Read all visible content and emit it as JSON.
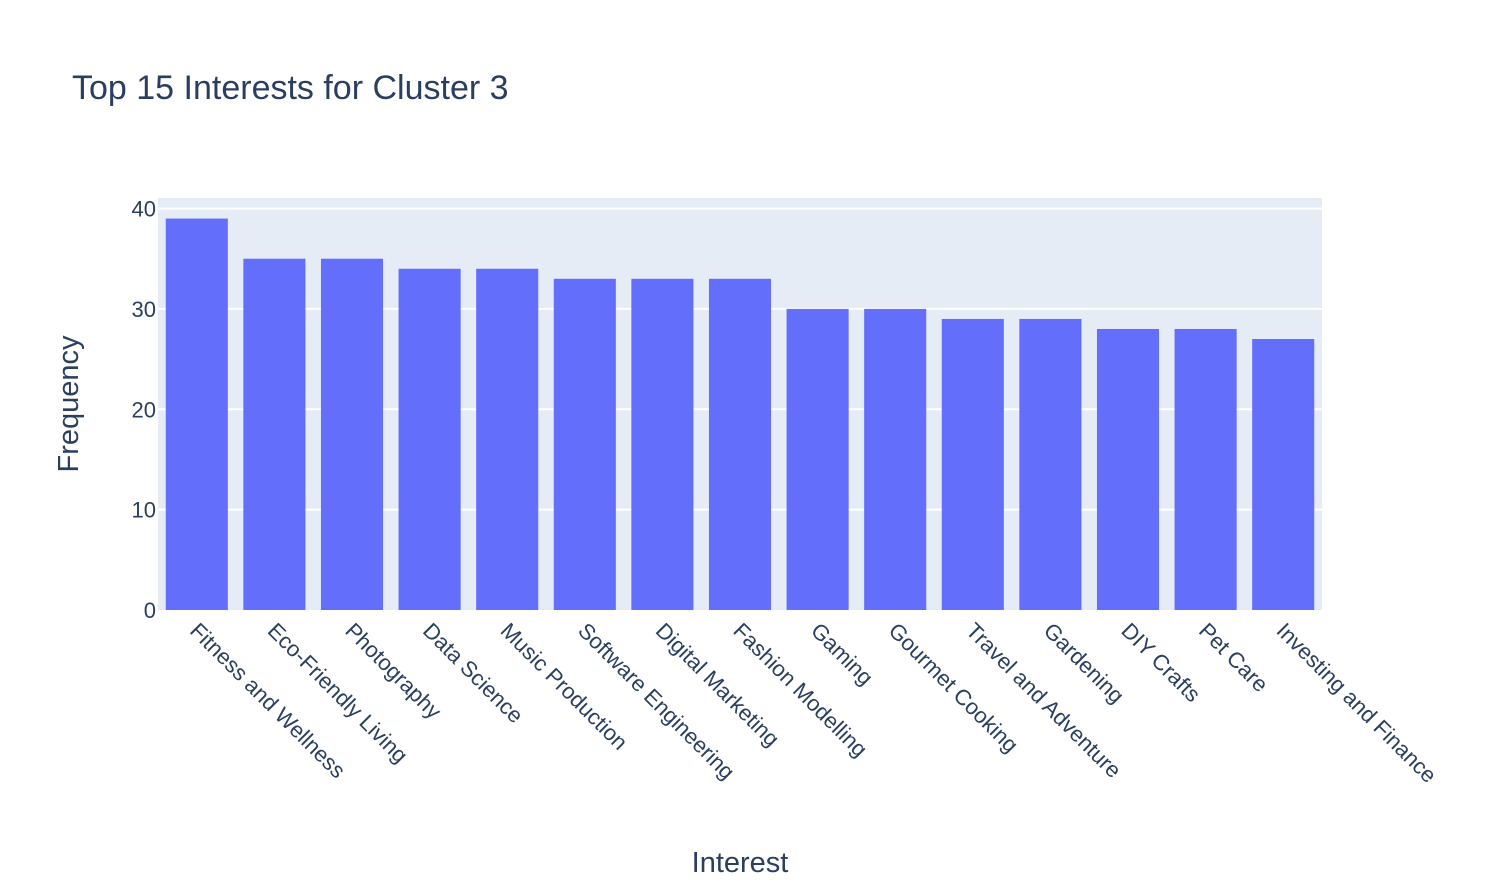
{
  "chart_data": {
    "type": "bar",
    "title": "Top 15 Interests for Cluster 3",
    "xlabel": "Interest",
    "ylabel": "Frequency",
    "categories": [
      "Fitness and Wellness",
      "Eco-Friendly Living",
      "Photography",
      "Data Science",
      "Music Production",
      "Software Engineering",
      "Digital Marketing",
      "Fashion Modelling",
      "Gaming",
      "Gourmet Cooking",
      "Travel and Adventure",
      "Gardening",
      "DIY Crafts",
      "Pet Care",
      "Investing and Finance"
    ],
    "values": [
      39,
      35,
      35,
      34,
      34,
      33,
      33,
      33,
      30,
      30,
      29,
      29,
      28,
      28,
      27
    ],
    "ylim": [
      0,
      41.05
    ],
    "yticks": [
      0,
      10,
      20,
      30,
      40
    ],
    "grid": true,
    "colors": {
      "bar": "#636efa",
      "plot_bg": "#e5ecf6",
      "grid": "#ffffff",
      "text": "#2a3f5f"
    }
  }
}
